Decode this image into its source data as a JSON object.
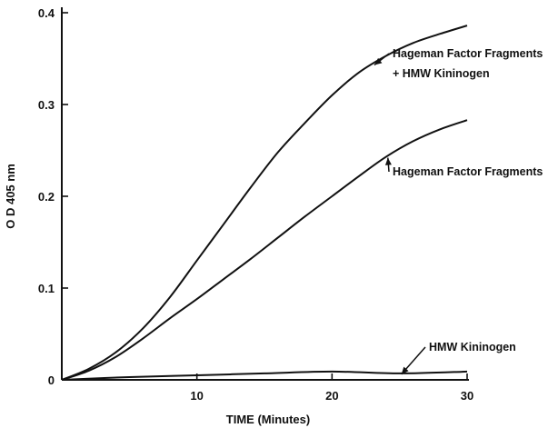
{
  "chart_data": {
    "type": "line",
    "xlabel": "TIME (Minutes)",
    "ylabel": "O D  405 nm",
    "xlim": [
      0,
      30
    ],
    "ylim": [
      0,
      0.4
    ],
    "xticks": [
      10,
      20,
      30
    ],
    "yticks": [
      0,
      0.1,
      0.2,
      0.3,
      0.4
    ],
    "xtick_labels": [
      "10",
      "20",
      "30"
    ],
    "ytick_labels": [
      "0",
      "0.1",
      "0.2",
      "0.3",
      "0.4"
    ],
    "grid": false,
    "legend": "none",
    "series": [
      {
        "name": "Hageman Factor Fragments + HMW Kininogen",
        "x": [
          0,
          2,
          4,
          6,
          8,
          10,
          12,
          14,
          16,
          18,
          20,
          22,
          24,
          26,
          28,
          30
        ],
        "y": [
          0,
          0.012,
          0.03,
          0.056,
          0.09,
          0.13,
          0.17,
          0.21,
          0.248,
          0.28,
          0.31,
          0.335,
          0.353,
          0.367,
          0.377,
          0.386
        ]
      },
      {
        "name": "Hageman Factor Fragments",
        "x": [
          0,
          2,
          4,
          6,
          8,
          10,
          12,
          14,
          16,
          18,
          20,
          22,
          24,
          26,
          28,
          30
        ],
        "y": [
          0,
          0.01,
          0.025,
          0.045,
          0.067,
          0.088,
          0.11,
          0.132,
          0.155,
          0.178,
          0.2,
          0.222,
          0.243,
          0.26,
          0.273,
          0.283
        ]
      },
      {
        "name": "HMW Kininogen",
        "x": [
          0,
          5,
          10,
          15,
          20,
          25,
          30
        ],
        "y": [
          0,
          0.003,
          0.005,
          0.007,
          0.009,
          0.007,
          0.009
        ]
      }
    ],
    "annotations": [
      {
        "lines": [
          "Hageman Factor Fragments",
          "+ HMW Kininogen"
        ],
        "series": 0,
        "x": 23
      },
      {
        "lines": [
          "Hageman Factor Fragments"
        ],
        "series": 1,
        "x": 24
      },
      {
        "lines": [
          "HMW Kininogen"
        ],
        "series": 2,
        "x": 25
      }
    ]
  }
}
